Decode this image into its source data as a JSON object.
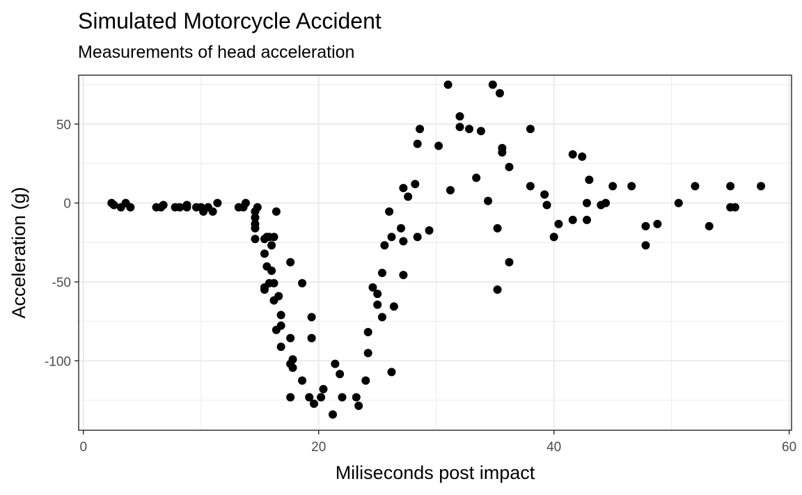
{
  "chart_data": {
    "type": "scatter",
    "title": "Simulated Motorcycle Accident",
    "subtitle": "Measurements of head acceleration",
    "xlabel": "Miliseconds post impact",
    "ylabel": "Acceleration (g)",
    "xlim": [
      -0.4,
      60.2
    ],
    "ylim": [
      -144,
      81
    ],
    "x_ticks": [
      0,
      20,
      40,
      60
    ],
    "y_ticks": [
      50,
      0,
      -50,
      -100
    ],
    "x_tick_labels": [
      "0",
      "20",
      "40",
      "60"
    ],
    "y_tick_labels": [
      "50",
      "0",
      "-50",
      "-100"
    ],
    "grid": true,
    "points": [
      {
        "x": 2.4,
        "y": 0.0
      },
      {
        "x": 2.6,
        "y": -1.3
      },
      {
        "x": 3.2,
        "y": -2.7
      },
      {
        "x": 3.6,
        "y": 0.0
      },
      {
        "x": 4.0,
        "y": -2.7
      },
      {
        "x": 6.2,
        "y": -2.7
      },
      {
        "x": 6.6,
        "y": -2.7
      },
      {
        "x": 6.8,
        "y": -1.3
      },
      {
        "x": 7.8,
        "y": -2.7
      },
      {
        "x": 8.2,
        "y": -2.7
      },
      {
        "x": 8.8,
        "y": -1.3
      },
      {
        "x": 8.8,
        "y": -2.7
      },
      {
        "x": 9.6,
        "y": -2.7
      },
      {
        "x": 10.0,
        "y": -2.7
      },
      {
        "x": 10.2,
        "y": -5.4
      },
      {
        "x": 10.6,
        "y": -2.7
      },
      {
        "x": 11.0,
        "y": -5.4
      },
      {
        "x": 11.4,
        "y": 0.0
      },
      {
        "x": 13.2,
        "y": -2.7
      },
      {
        "x": 13.6,
        "y": -2.7
      },
      {
        "x": 13.8,
        "y": 0.0
      },
      {
        "x": 14.6,
        "y": -13.3
      },
      {
        "x": 14.6,
        "y": -5.4
      },
      {
        "x": 14.6,
        "y": -5.4
      },
      {
        "x": 14.6,
        "y": -9.3
      },
      {
        "x": 14.6,
        "y": -16.0
      },
      {
        "x": 14.6,
        "y": -22.8
      },
      {
        "x": 14.8,
        "y": -2.7
      },
      {
        "x": 15.4,
        "y": -22.8
      },
      {
        "x": 15.4,
        "y": -32.1
      },
      {
        "x": 15.4,
        "y": -53.5
      },
      {
        "x": 15.4,
        "y": -54.9
      },
      {
        "x": 15.6,
        "y": -40.2
      },
      {
        "x": 15.6,
        "y": -21.5
      },
      {
        "x": 15.8,
        "y": -21.5
      },
      {
        "x": 15.8,
        "y": -50.8
      },
      {
        "x": 16.0,
        "y": -42.9
      },
      {
        "x": 16.0,
        "y": -26.8
      },
      {
        "x": 16.2,
        "y": -21.5
      },
      {
        "x": 16.2,
        "y": -50.8
      },
      {
        "x": 16.2,
        "y": -61.7
      },
      {
        "x": 16.4,
        "y": -5.4
      },
      {
        "x": 16.4,
        "y": -80.4
      },
      {
        "x": 16.6,
        "y": -59.0
      },
      {
        "x": 16.8,
        "y": -71.0
      },
      {
        "x": 16.8,
        "y": -91.1
      },
      {
        "x": 16.8,
        "y": -77.7
      },
      {
        "x": 17.6,
        "y": -37.5
      },
      {
        "x": 17.6,
        "y": -85.6
      },
      {
        "x": 17.6,
        "y": -123.1
      },
      {
        "x": 17.6,
        "y": -101.9
      },
      {
        "x": 17.8,
        "y": -99.1
      },
      {
        "x": 17.8,
        "y": -104.4
      },
      {
        "x": 18.6,
        "y": -112.5
      },
      {
        "x": 18.6,
        "y": -50.8
      },
      {
        "x": 19.2,
        "y": -123.1
      },
      {
        "x": 19.4,
        "y": -85.6
      },
      {
        "x": 19.4,
        "y": -72.3
      },
      {
        "x": 19.6,
        "y": -127.2
      },
      {
        "x": 20.2,
        "y": -123.1
      },
      {
        "x": 20.4,
        "y": -117.9
      },
      {
        "x": 21.2,
        "y": -134.0
      },
      {
        "x": 21.4,
        "y": -101.9
      },
      {
        "x": 21.8,
        "y": -108.4
      },
      {
        "x": 22.0,
        "y": -123.1
      },
      {
        "x": 23.2,
        "y": -123.1
      },
      {
        "x": 23.4,
        "y": -128.5
      },
      {
        "x": 24.0,
        "y": -112.5
      },
      {
        "x": 24.2,
        "y": -95.1
      },
      {
        "x": 24.2,
        "y": -81.8
      },
      {
        "x": 24.6,
        "y": -53.5
      },
      {
        "x": 25.0,
        "y": -64.4
      },
      {
        "x": 25.0,
        "y": -57.6
      },
      {
        "x": 25.4,
        "y": -72.3
      },
      {
        "x": 25.4,
        "y": -44.3
      },
      {
        "x": 25.6,
        "y": -26.8
      },
      {
        "x": 26.0,
        "y": -5.4
      },
      {
        "x": 26.2,
        "y": -107.1
      },
      {
        "x": 26.2,
        "y": -21.5
      },
      {
        "x": 26.4,
        "y": -65.6
      },
      {
        "x": 27.0,
        "y": -16.0
      },
      {
        "x": 27.2,
        "y": -45.6
      },
      {
        "x": 27.2,
        "y": -24.2
      },
      {
        "x": 27.2,
        "y": 9.5
      },
      {
        "x": 27.6,
        "y": 4.0
      },
      {
        "x": 28.2,
        "y": 12.0
      },
      {
        "x": 28.4,
        "y": -21.5
      },
      {
        "x": 28.4,
        "y": 37.5
      },
      {
        "x": 28.6,
        "y": 46.9
      },
      {
        "x": 29.4,
        "y": -17.4
      },
      {
        "x": 30.2,
        "y": 36.2
      },
      {
        "x": 31.0,
        "y": 75.0
      },
      {
        "x": 31.2,
        "y": 8.1
      },
      {
        "x": 32.0,
        "y": 54.9
      },
      {
        "x": 32.0,
        "y": 48.2
      },
      {
        "x": 32.8,
        "y": 46.9
      },
      {
        "x": 33.4,
        "y": 16.0
      },
      {
        "x": 33.8,
        "y": 45.6
      },
      {
        "x": 34.4,
        "y": 1.3
      },
      {
        "x": 34.8,
        "y": 75.0
      },
      {
        "x": 35.2,
        "y": -16.0
      },
      {
        "x": 35.2,
        "y": -54.9
      },
      {
        "x": 35.4,
        "y": 69.6
      },
      {
        "x": 35.6,
        "y": 34.8
      },
      {
        "x": 35.6,
        "y": 32.1
      },
      {
        "x": 36.2,
        "y": -37.5
      },
      {
        "x": 36.2,
        "y": 22.8
      },
      {
        "x": 38.0,
        "y": 46.9
      },
      {
        "x": 38.0,
        "y": 10.7
      },
      {
        "x": 39.2,
        "y": 5.4
      },
      {
        "x": 39.4,
        "y": -1.3
      },
      {
        "x": 40.0,
        "y": -21.5
      },
      {
        "x": 40.4,
        "y": -13.3
      },
      {
        "x": 41.6,
        "y": 30.8
      },
      {
        "x": 41.6,
        "y": -10.7
      },
      {
        "x": 42.4,
        "y": 29.4
      },
      {
        "x": 42.8,
        "y": 0.0
      },
      {
        "x": 42.8,
        "y": -10.7
      },
      {
        "x": 43.0,
        "y": 14.7
      },
      {
        "x": 44.0,
        "y": -1.3
      },
      {
        "x": 44.4,
        "y": 0.0
      },
      {
        "x": 45.0,
        "y": 10.7
      },
      {
        "x": 46.6,
        "y": 10.7
      },
      {
        "x": 47.8,
        "y": -26.8
      },
      {
        "x": 47.8,
        "y": -14.7
      },
      {
        "x": 48.8,
        "y": -13.3
      },
      {
        "x": 50.6,
        "y": 0.0
      },
      {
        "x": 52.0,
        "y": 10.7
      },
      {
        "x": 53.2,
        "y": -14.7
      },
      {
        "x": 55.0,
        "y": -2.7
      },
      {
        "x": 55.0,
        "y": 10.7
      },
      {
        "x": 55.4,
        "y": -2.7
      },
      {
        "x": 57.6,
        "y": 10.7
      }
    ]
  }
}
